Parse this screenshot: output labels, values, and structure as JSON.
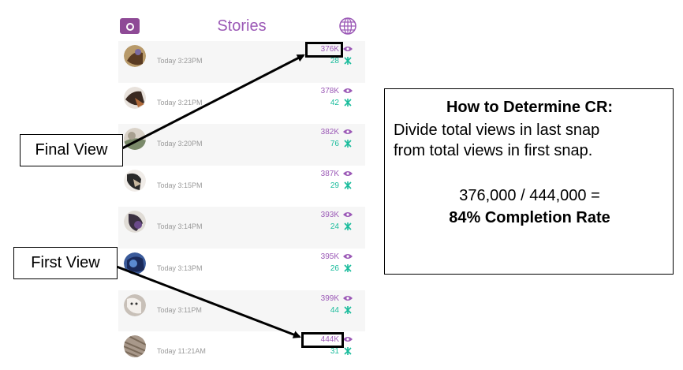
{
  "header": {
    "title": "Stories",
    "left_icon": "camera-icon",
    "right_icon": "globe-icon"
  },
  "stories": [
    {
      "time": "Today 3:23PM",
      "views": "376K",
      "screenshots": "28"
    },
    {
      "time": "Today 3:21PM",
      "views": "378K",
      "screenshots": "42"
    },
    {
      "time": "Today 3:20PM",
      "views": "382K",
      "screenshots": "76"
    },
    {
      "time": "Today 3:15PM",
      "views": "387K",
      "screenshots": "29"
    },
    {
      "time": "Today 3:14PM",
      "views": "393K",
      "screenshots": "24"
    },
    {
      "time": "Today 3:13PM",
      "views": "395K",
      "screenshots": "26"
    },
    {
      "time": "Today 3:11PM",
      "views": "399K",
      "screenshots": "44"
    },
    {
      "time": "Today 11:21AM",
      "views": "444K",
      "screenshots": "31"
    }
  ],
  "annotations": {
    "final_view_label": "Final View",
    "first_view_label": "First View"
  },
  "info": {
    "title": "How to Determine CR:",
    "line1": "Divide total views in last snap",
    "line2": "from total views in first snap.",
    "equation": "376,000 / 444,000 =",
    "result": "84% Completion Rate"
  },
  "colors": {
    "accent": "#9b59b6",
    "screenshot_count": "#1abc9c",
    "camera_button": "#8e4a96"
  }
}
